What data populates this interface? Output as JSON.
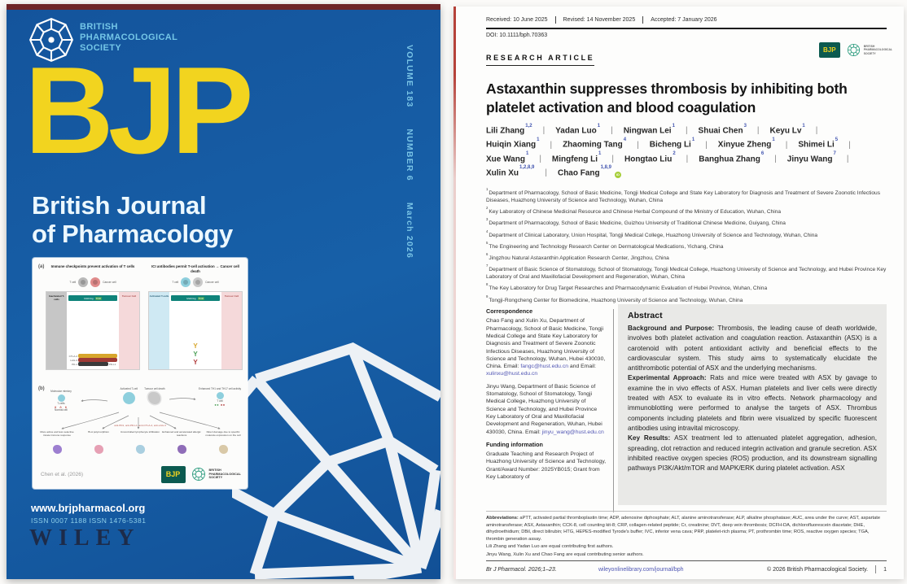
{
  "society_lines": [
    "BRITISH",
    "PHARMACOLOGICAL",
    "SOCIETY"
  ],
  "cover": {
    "logo": "BJP",
    "spine": [
      "VOLUME 183",
      "NUMBER 6",
      "March 2026"
    ],
    "title_line1": "British Journal",
    "title_line2": "of Pharmacology",
    "website": "www.brjpharmacol.org",
    "issn": "ISSN 0007 1188    ISSN 1476-5381",
    "publisher": "WILEY",
    "colors": {
      "background": "#15589e",
      "accent_yellow": "#f2d41f",
      "accent_cyan": "#74c6e7"
    },
    "figure": {
      "panel_a_label": "(a)",
      "panel_b_label": "(b)",
      "left": {
        "title": "Immune checkpoints prevent activation of T cells",
        "cell1": "T cell",
        "cell2": "Cancer cell",
        "col_left": "Inactivated T-cells",
        "col_right": "Tumour Cell",
        "bar1": "MHC/Ag",
        "bar2": "TCR"
      },
      "right": {
        "title": "ICI antibodies permit T-cell activation → Cancer cell death",
        "cell1": "T cell",
        "cell2": "Cancer cell",
        "col_left": "Activated T-cells",
        "col_right": "Tumour Cell",
        "bar1": "MHC/Ag",
        "bar2": "TCR"
      },
      "receptors": [
        {
          "label": "CTLA-4",
          "color": "#d7a62c",
          "right": ""
        },
        {
          "label": "LAG-3",
          "color": "#9e3a36",
          "right": ""
        },
        {
          "label": "PD-1",
          "color": "#3a3a3a",
          "right": "PD-L1"
        }
      ],
      "antibody_colors": [
        "#d7a62c",
        "#4a9e55",
        "#b03a3a"
      ],
      "b": {
        "mimicry": "Molecular mimicry",
        "tcells": "T-cells",
        "normal": "Normal cell",
        "activated": "Activated T-cell",
        "death": "Tumour cell death",
        "enhanced": "Enhanced TH1 and TH17 cell activity",
        "tcell": "T cell",
        "antibodies": "anti-PD1, anti-PD-L1, anti-CTLA-4, anti-LAG-3"
      },
      "outcomes": [
        {
          "label": "More active and less selective innate immune response",
          "color": "#9d7fd0"
        },
        {
          "label": "HLA polymorphism",
          "color": "#e6a0b4"
        },
        {
          "label": "Uncontrolled lymphocyte infiltration",
          "color": "#aacfe0"
        },
        {
          "label": "Enhanced and accelerated allergic reactions",
          "color": "#8f6db8"
        },
        {
          "label": "Direct damage due to specific molecule expression on the cell",
          "color": "#d9c9a8"
        }
      ],
      "caption": "Chen et al. (2026)",
      "badge": "BJP"
    }
  },
  "article": {
    "dateline": [
      "Received: 10 June 2025",
      "Revised: 14 November 2025",
      "Accepted: 7 January 2026"
    ],
    "doi": "DOI: 10.1111/bph.70363",
    "section_label": "RESEARCH ARTICLE",
    "badge": "BJP",
    "title": "Astaxanthin suppresses thrombosis by inhibiting both platelet activation and blood coagulation",
    "authors": [
      {
        "name": "Lili Zhang",
        "sup": "1,2"
      },
      {
        "name": "Yadan Luo",
        "sup": "1"
      },
      {
        "name": "Ningwan Lei",
        "sup": "1"
      },
      {
        "name": "Shuai Chen",
        "sup": "3"
      },
      {
        "name": "Keyu Lv",
        "sup": "1"
      },
      {
        "name": "Huiqin Xiang",
        "sup": "1"
      },
      {
        "name": "Zhaoming Tang",
        "sup": "4"
      },
      {
        "name": "Bicheng Li",
        "sup": "1"
      },
      {
        "name": "Xinyue Zheng",
        "sup": "1"
      },
      {
        "name": "Shimei Li",
        "sup": "5"
      },
      {
        "name": "Xue Wang",
        "sup": "1"
      },
      {
        "name": "Mingfeng Li",
        "sup": "1"
      },
      {
        "name": "Hongtao Liu",
        "sup": "2"
      },
      {
        "name": "Banghua Zhang",
        "sup": "6"
      },
      {
        "name": "Jinyu Wang",
        "sup": "7"
      },
      {
        "name": "Xulin Xu",
        "sup": "1,2,8,9"
      },
      {
        "name": "Chao Fang",
        "sup": "1,8,9",
        "orcid": true
      }
    ],
    "affiliations": [
      {
        "n": "1",
        "text": "Department of Pharmacology, School of Basic Medicine, Tongji Medical College and State Key Laboratory for Diagnosis and Treatment of Severe Zoonotic Infectious Diseases, Huazhong University of Science and Technology, Wuhan, China"
      },
      {
        "n": "2",
        "text": "Key Laboratory of Chinese Medicinal Resource and Chinese Herbal Compound of the Ministry of Education, Wuhan, China"
      },
      {
        "n": "3",
        "text": "Department of Pharmacology, School of Basic Medicine, Guizhou University of Traditional Chinese Medicine, Guiyang, China"
      },
      {
        "n": "4",
        "text": "Department of Clinical Laboratory, Union Hospital, Tongji Medical College, Huazhong University of Science and Technology, Wuhan, China"
      },
      {
        "n": "5",
        "text": "The Engineering and Technology Research Center on Dermatological Medications, Yichang, China"
      },
      {
        "n": "6",
        "text": "Jingzhou Natural Astaxanthin Application Research Center, Jingzhou, China"
      },
      {
        "n": "7",
        "text": "Department of Basic Science of Stomatology, School of Stomatology, Tongji Medical College, Huazhong University of Science and Technology, and Hubei Province Key Laboratory of Oral and Maxillofacial Development and Regeneration, Wuhan, China"
      },
      {
        "n": "8",
        "text": "The Key Laboratory for Drug Target Researches and Pharmacodynamic Evaluation of Hubei Province, Wuhan, China"
      },
      {
        "n": "9",
        "text": "Tongji-Rongcheng Center for Biomedicine, Huazhong University of Science and Technology, Wuhan, China"
      }
    ],
    "correspondence": {
      "heading": "Correspondence",
      "blocks": [
        {
          "text": "Chao Fang and Xulin Xu, Department of Pharmacology, School of Basic Medicine, Tongji Medical College and State Key Laboratory for Diagnosis and Treatment of Severe Zoonotic Infectious Diseases, Huazhong University of Science and Technology, Wuhan, Hubei 430030, China.",
          "emails": [
            {
              "label": "Email: ",
              "address": "fangc@hust.edu.cn",
              "after": " and "
            },
            {
              "label": "Email: ",
              "address": "xulinxu@hust.edu.cn",
              "after": ""
            }
          ]
        },
        {
          "text": "Jinyu Wang, Department of Basic Science of Stomatology, School of Stomatology, Tongji Medical College, Huazhong University of Science and Technology, and Hubei Province Key Laboratory of Oral and Maxillofacial Development and Regeneration, Wuhan, Hubei 430030, China.",
          "emails": [
            {
              "label": "Email: ",
              "address": "jinyu_wang@hust.edu.cn",
              "after": ""
            }
          ]
        }
      ]
    },
    "funding": {
      "heading": "Funding information",
      "text": "Graduate Teaching and Research Project of Huazhong University of Science and Technology, Grant/Award Number: 2025YB015; Grant from Key Laboratory of"
    },
    "abstract": {
      "heading": "Abstract",
      "sections": [
        {
          "lead": "Background and Purpose:",
          "text": "Thrombosis, the leading cause of death worldwide, involves both platelet activation and coagulation reaction. Astaxanthin (ASX) is a carotenoid with potent antioxidant activity and beneficial effects to the cardiovascular system. This study aims to systematically elucidate the antithrombotic potential of ASX and the underlying mechanisms."
        },
        {
          "lead": "Experimental Approach:",
          "text": "Rats and mice were treated with ASX by gavage to examine the in vivo effects of ASX. Human platelets and liver cells were directly treated with ASX to evaluate its in vitro effects. Network pharmacology and immunoblotting were performed to analyse the targets of ASX. Thrombus components including platelets and fibrin were visualized by specific fluorescent antibodies using intravital microscopy."
        },
        {
          "lead": "Key Results:",
          "text": "ASX treatment led to attenuated platelet aggregation, adhesion, spreading, clot retraction and reduced integrin activation and granule secretion. ASX inhibited reactive oxygen species (ROS) production, and its downstream signalling pathways PI3K/Akt/mTOR and MAPK/ERK during platelet activation. ASX"
        }
      ]
    },
    "abbreviations": {
      "lead": "Abbreviations:",
      "text": "aPTT, activated partial thromboplastin time; ADP, adenosine diphosphate; ALT, alanine aminotransferase; ALP, alkaline phosphatase; AUC, area under the curve; AST, aspartate aminotransferase; ASX, Astaxanthin; CCK-8, cell counting kit-8; CRP, collagen-related peptide; Cr, creatinine; DVT, deep vein thrombosis; DCFH-DA, dichlorofluorescein diacetate; DHE, dihydroethidium; DBil, direct bilirubin; HTG, HEPES-modified Tyrode's buffer; IVC, inferior vena cava; PRP, platelet-rich plasma; PT, prothrombin time; ROS, reactive oxygen species; TGA, thrombin generation assay."
    },
    "notes": [
      "Lili Zhang and Yadan Luo are equal contributing first authors.",
      "Jinyu Wang, Xulin Xu and Chao Fang are equal contributing senior authors."
    ],
    "footer": {
      "ref": "Br J Pharmacol. 2026;1–23.",
      "link": "wileyonlinelibrary.com/journal/bph",
      "copyright": "© 2026 British Pharmacological Society.",
      "page": "1"
    }
  }
}
